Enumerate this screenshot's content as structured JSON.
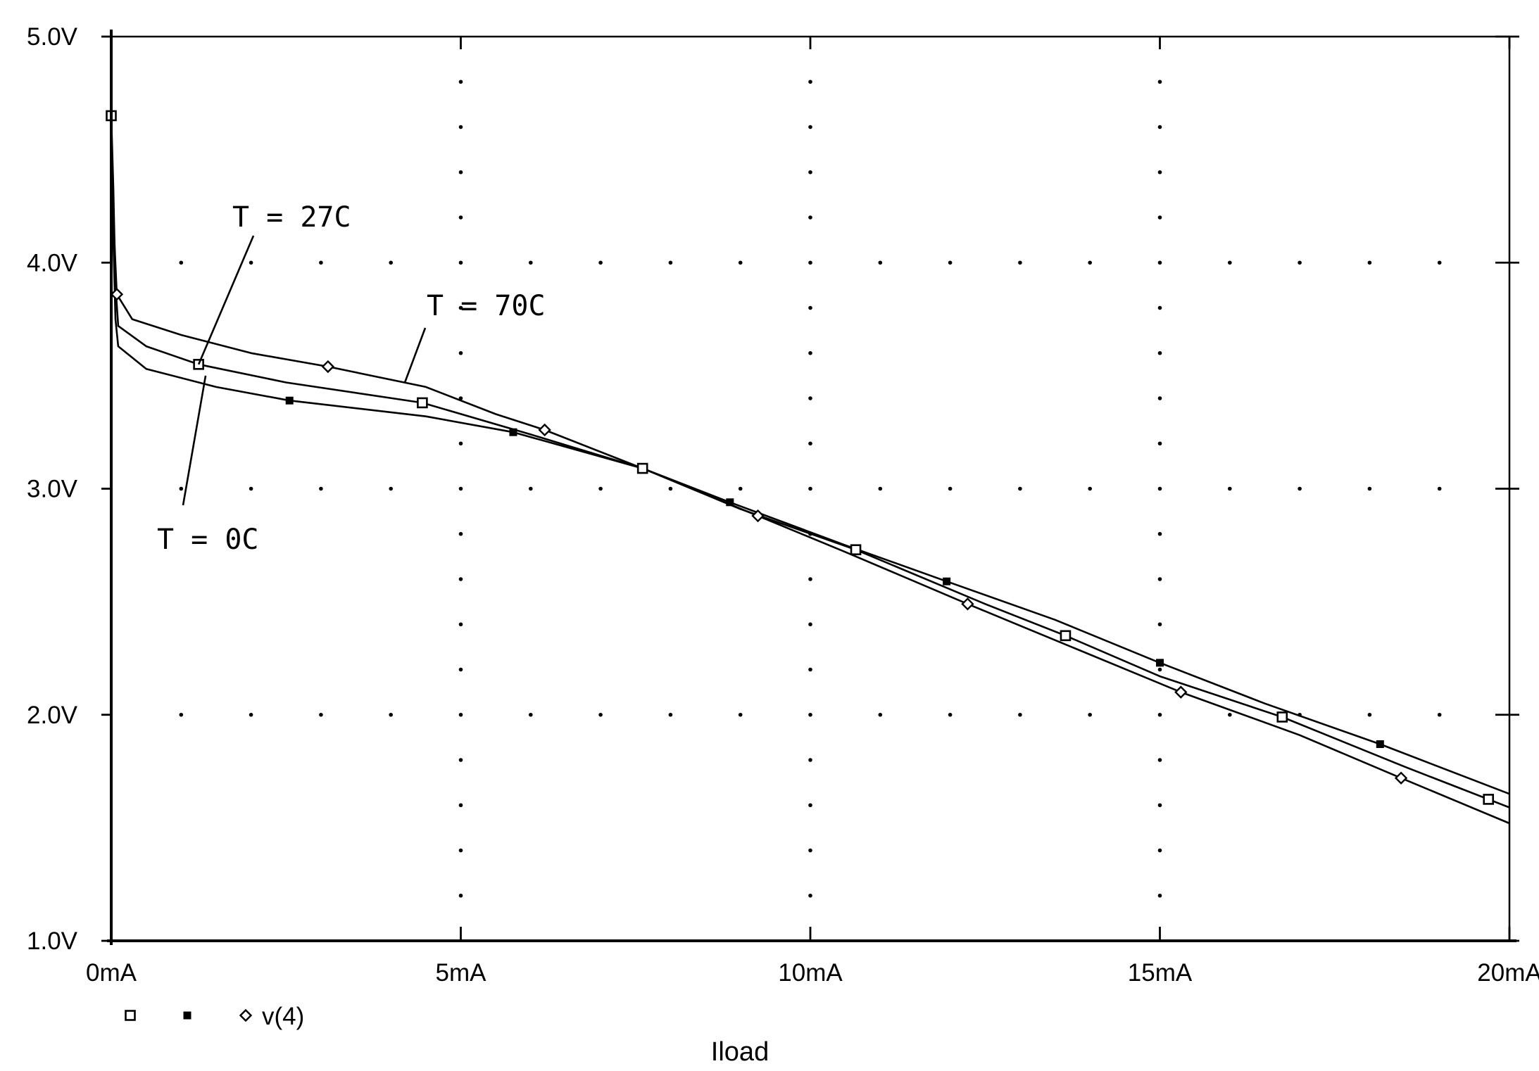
{
  "chart_data": {
    "type": "line",
    "title": "",
    "xlabel": "Iload",
    "ylabel": "",
    "xlim": [
      0,
      20
    ],
    "ylim": [
      1.0,
      5.0
    ],
    "x_unit": "mA",
    "y_unit": "V",
    "x_ticks": [
      0,
      5,
      10,
      15,
      20
    ],
    "x_tick_labels": [
      "0mA",
      "5mA",
      "10mA",
      "15mA",
      "20mA"
    ],
    "y_ticks": [
      1.0,
      2.0,
      3.0,
      4.0,
      5.0
    ],
    "y_tick_labels": [
      "1.0V",
      "2.0V",
      "3.0V",
      "4.0V",
      "5.0V"
    ],
    "grid": "dotted",
    "legend": {
      "placement": "bottom-left",
      "label": "v(4)",
      "entries": [
        {
          "marker": "open-square"
        },
        {
          "marker": "filled-square"
        },
        {
          "marker": "diamond",
          "label": "v(4)"
        }
      ]
    },
    "series": [
      {
        "marker": "open-square",
        "x": [
          0,
          0.03,
          0.06,
          0.1,
          0.5,
          1.25,
          2.5,
          4.45,
          6.0,
          7.6,
          9.0,
          10.65,
          12.5,
          13.65,
          15.0,
          16.75,
          18.5,
          20.0
        ],
        "y": [
          4.65,
          4.33,
          3.9,
          3.72,
          3.63,
          3.55,
          3.47,
          3.38,
          3.24,
          3.09,
          2.91,
          2.73,
          2.49,
          2.35,
          2.17,
          1.99,
          1.77,
          1.59
        ],
        "marker_x": [
          0,
          1.25,
          4.45,
          7.6,
          10.65,
          13.65,
          16.75,
          19.7
        ]
      },
      {
        "marker": "filled-square",
        "x": [
          0,
          0.03,
          0.06,
          0.1,
          0.5,
          1.5,
          2.55,
          4.5,
          5.75,
          7.6,
          8.85,
          10.5,
          11.95,
          13.5,
          15.0,
          16.5,
          18.15,
          20.0
        ],
        "y": [
          4.6,
          4.1,
          3.75,
          3.63,
          3.53,
          3.45,
          3.39,
          3.32,
          3.25,
          3.09,
          2.94,
          2.75,
          2.59,
          2.42,
          2.23,
          2.05,
          1.87,
          1.65
        ],
        "marker_x": [
          2.55,
          5.75,
          8.85,
          11.95,
          15.0,
          18.15
        ]
      },
      {
        "marker": "diamond",
        "name": "v(4)",
        "x": [
          0,
          0.03,
          0.08,
          0.3,
          1.0,
          2.0,
          3.1,
          4.5,
          5.5,
          6.2,
          7.6,
          9.25,
          10.5,
          12.25,
          13.5,
          15.3,
          17.0,
          18.45,
          20.0
        ],
        "y": [
          4.6,
          4.2,
          3.86,
          3.75,
          3.68,
          3.6,
          3.54,
          3.45,
          3.33,
          3.26,
          3.09,
          2.88,
          2.72,
          2.49,
          2.33,
          2.1,
          1.91,
          1.72,
          1.52
        ],
        "marker_x": [
          0.08,
          3.1,
          6.2,
          9.25,
          12.25,
          15.3,
          18.45
        ]
      }
    ],
    "annotations": [
      {
        "text": "T = 27C",
        "point_x": 1.25,
        "point_y": 3.55
      },
      {
        "text": "T = 70C",
        "point_x": 4.2,
        "point_y": 3.47
      },
      {
        "text": "T = 0C",
        "point_x": 1.35,
        "point_y": 3.5
      }
    ]
  }
}
